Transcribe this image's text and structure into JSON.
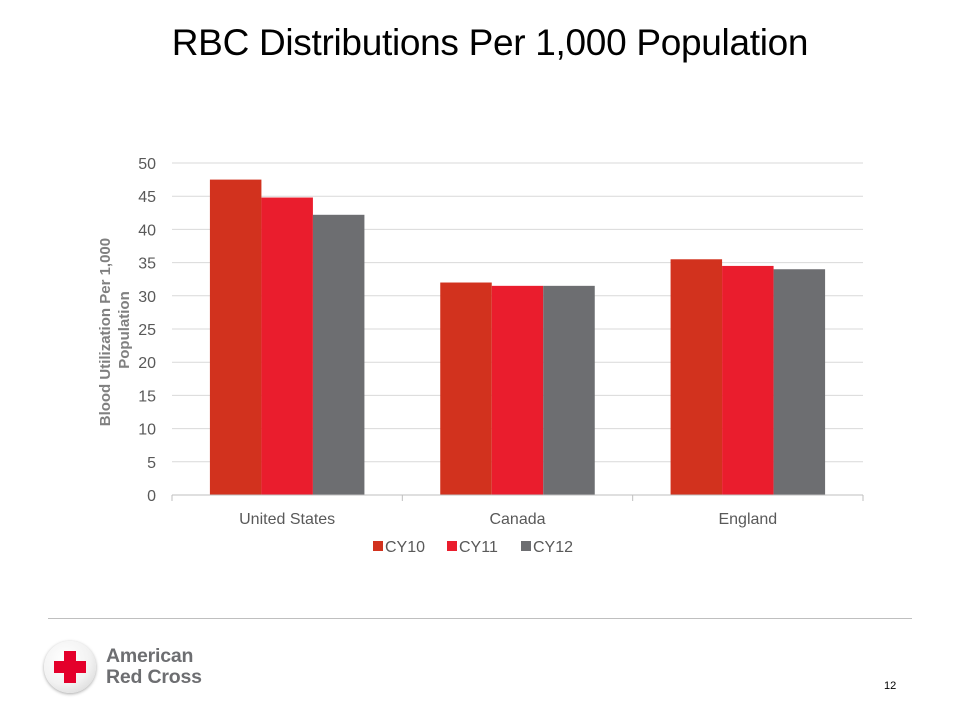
{
  "slide": {
    "title": "RBC Distributions Per 1,000 Population",
    "page_number": "12"
  },
  "logo": {
    "line1": "American",
    "line2": "Red Cross"
  },
  "chart_data": {
    "type": "bar",
    "categories": [
      "United States",
      "Canada",
      "England"
    ],
    "series": [
      {
        "name": "CY10",
        "color": "#d2321e",
        "values": [
          47.5,
          32.0,
          35.5
        ]
      },
      {
        "name": "CY11",
        "color": "#ea1d2d",
        "values": [
          44.8,
          31.5,
          34.5
        ]
      },
      {
        "name": "CY12",
        "color": "#6d6e71",
        "values": [
          42.2,
          31.5,
          34.0
        ]
      }
    ],
    "ylabel_lines": [
      "Blood Utilization Per 1,000",
      "Population"
    ],
    "ylim": [
      0,
      50
    ],
    "yticks": [
      "0",
      "5",
      "10",
      "15",
      "20",
      "25",
      "30",
      "35",
      "40",
      "45",
      "50"
    ],
    "grid": true,
    "legend_position": "bottom"
  }
}
